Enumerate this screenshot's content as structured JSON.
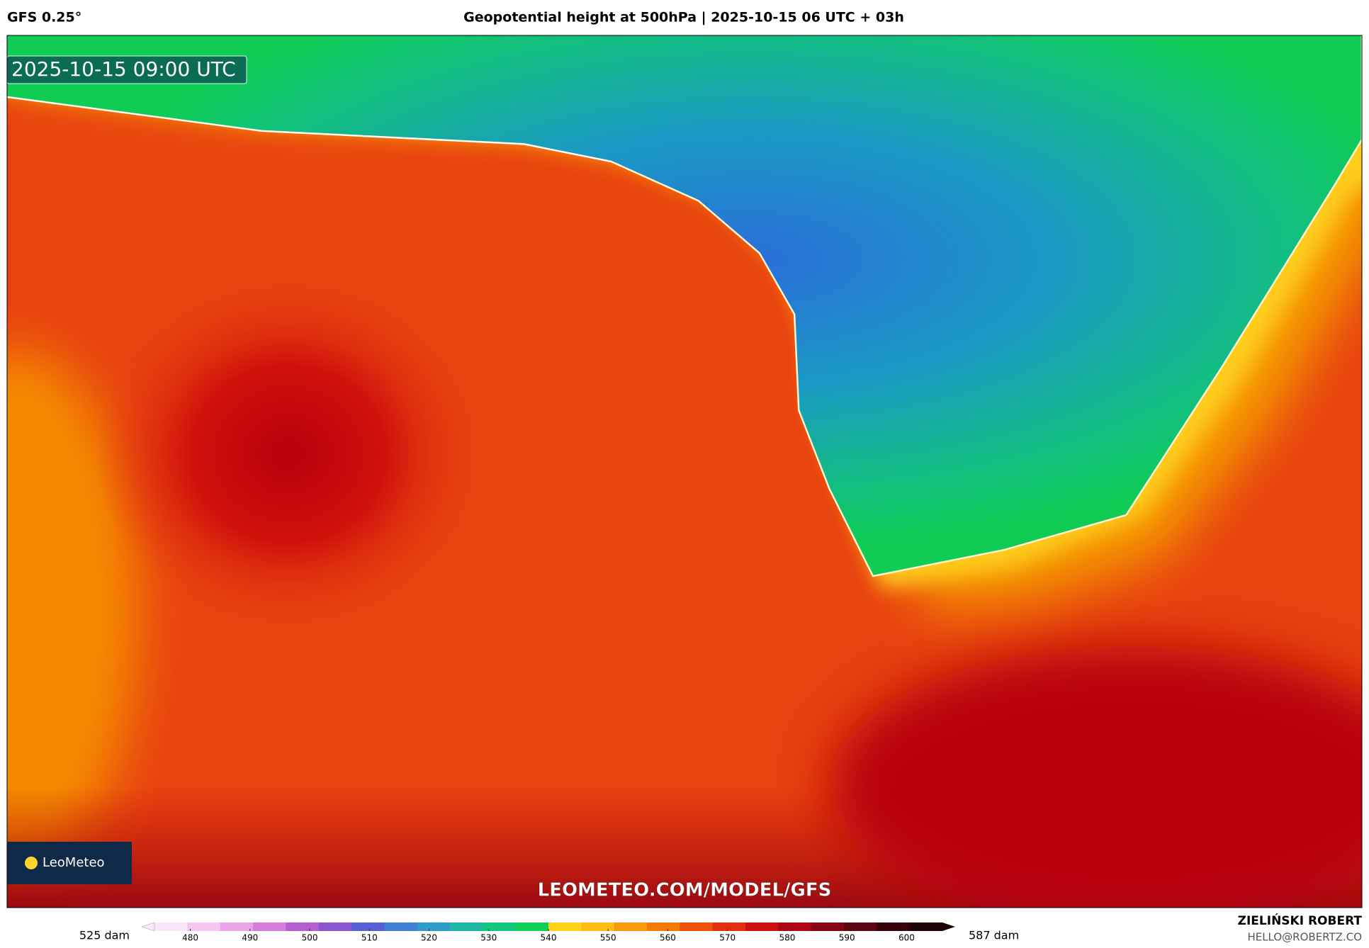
{
  "header": {
    "model": "GFS 0.25°",
    "title": "Geopotential height at 500hPa | 2025-10-15 06 UTC + 03h"
  },
  "map": {
    "timestamp": "2025-10-15 09:00 UTC",
    "logo": "LeoMeteo",
    "watermark": "LEOMETEO.COM/MODEL/GFS"
  },
  "legend": {
    "min_label": "525 dam",
    "max_label": "587 dam",
    "lim": [
      474,
      606
    ],
    "ticks": [
      480,
      490,
      500,
      510,
      520,
      530,
      540,
      550,
      560,
      570,
      580,
      590,
      600
    ],
    "colors": [
      "#fbe6fb",
      "#f4c6f1",
      "#eaa3e8",
      "#d77ddc",
      "#b45ed2",
      "#8a55d0",
      "#5b5fd6",
      "#3f7fd8",
      "#2f9bc9",
      "#1fb6a6",
      "#12c779",
      "#10cf55",
      "#ffd21a",
      "#ffbc10",
      "#f89a08",
      "#f47a05",
      "#ee5208",
      "#e0300c",
      "#cc1010",
      "#ac0612",
      "#860414",
      "#5c0410",
      "#36030a",
      "#1a0205"
    ]
  },
  "author": {
    "name": "ZIELIŃSKI ROBERT",
    "email": "HELLO@ROBERTZ.CO"
  }
}
